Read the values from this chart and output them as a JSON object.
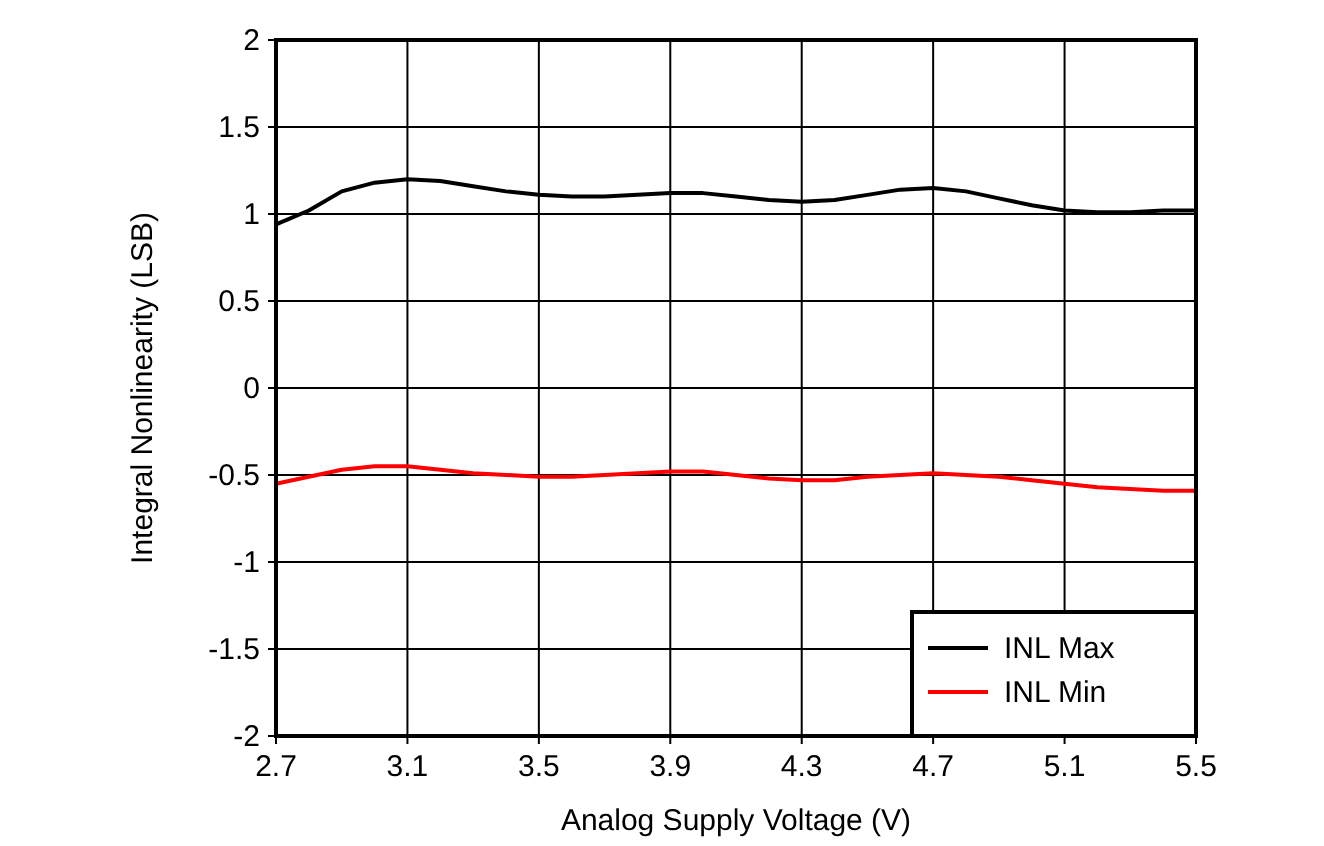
{
  "chart_data": {
    "type": "line",
    "xlabel": "Analog Supply Voltage (V)",
    "ylabel": "Integral Nonlinearity (LSB)",
    "x": [
      2.7,
      2.8,
      2.9,
      3.0,
      3.1,
      3.2,
      3.3,
      3.4,
      3.5,
      3.6,
      3.7,
      3.8,
      3.9,
      4.0,
      4.1,
      4.2,
      4.3,
      4.4,
      4.5,
      4.6,
      4.7,
      4.8,
      4.9,
      5.0,
      5.1,
      5.2,
      5.3,
      5.4,
      5.5
    ],
    "series": [
      {
        "name": "INL Max",
        "color": "#000000",
        "values": [
          0.94,
          1.02,
          1.13,
          1.18,
          1.2,
          1.19,
          1.16,
          1.13,
          1.11,
          1.1,
          1.1,
          1.11,
          1.12,
          1.12,
          1.1,
          1.08,
          1.07,
          1.08,
          1.11,
          1.14,
          1.15,
          1.13,
          1.09,
          1.05,
          1.02,
          1.01,
          1.01,
          1.02,
          1.02
        ]
      },
      {
        "name": "INL Min",
        "color": "#ff0000",
        "values": [
          -0.55,
          -0.51,
          -0.47,
          -0.45,
          -0.45,
          -0.47,
          -0.49,
          -0.5,
          -0.51,
          -0.51,
          -0.5,
          -0.49,
          -0.48,
          -0.48,
          -0.5,
          -0.52,
          -0.53,
          -0.53,
          -0.51,
          -0.5,
          -0.49,
          -0.5,
          -0.51,
          -0.53,
          -0.55,
          -0.57,
          -0.58,
          -0.59,
          -0.59
        ]
      }
    ],
    "xlim": [
      2.7,
      5.5
    ],
    "xticks": [
      2.7,
      3.1,
      3.5,
      3.9,
      4.3,
      4.7,
      5.1,
      5.5
    ],
    "ylim": [
      -2,
      2
    ],
    "yticks": [
      -2,
      -1.5,
      -1,
      -0.5,
      0,
      0.5,
      1,
      1.5,
      2
    ],
    "grid": true,
    "legend": "bottom right",
    "marker": "none",
    "line_style": "solid"
  }
}
